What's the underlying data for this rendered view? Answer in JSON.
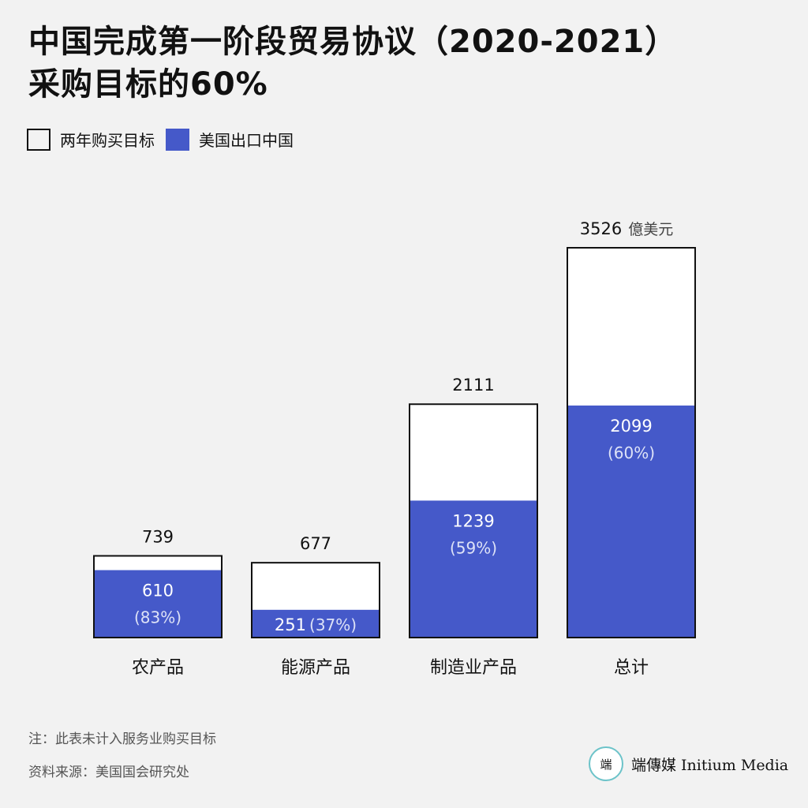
{
  "title_line1": "中国完成第一阶段贸易协议（2020-2021）",
  "title_line2": "采购目标的60%",
  "legend": {
    "target_label": "两年购买目标",
    "export_label": "美国出口中国"
  },
  "colors": {
    "target_fill": "#ffffff",
    "export_fill": "#4559c9",
    "stroke": "#111111",
    "background": "#f2f2f2"
  },
  "chart_data": {
    "type": "bar",
    "categories": [
      "农产品",
      "能源产品",
      "制造业产品",
      "总计"
    ],
    "series": [
      {
        "name": "两年购买目标",
        "values": [
          739,
          677,
          2111,
          3526
        ]
      },
      {
        "name": "美国出口中国",
        "values": [
          610,
          251,
          1239,
          2099
        ]
      }
    ],
    "percent_labels": [
      "(83%)",
      "(37%)",
      "(59%)",
      "(60%)"
    ],
    "unit": "億美元",
    "ylim": [
      0,
      3526
    ]
  },
  "notes": {
    "note": "注：此表未计入服务业购买目标",
    "source": "资料来源：美国国会研究处"
  },
  "brand": {
    "logo_glyph": "端",
    "name": "端傳媒 Initium Media"
  }
}
